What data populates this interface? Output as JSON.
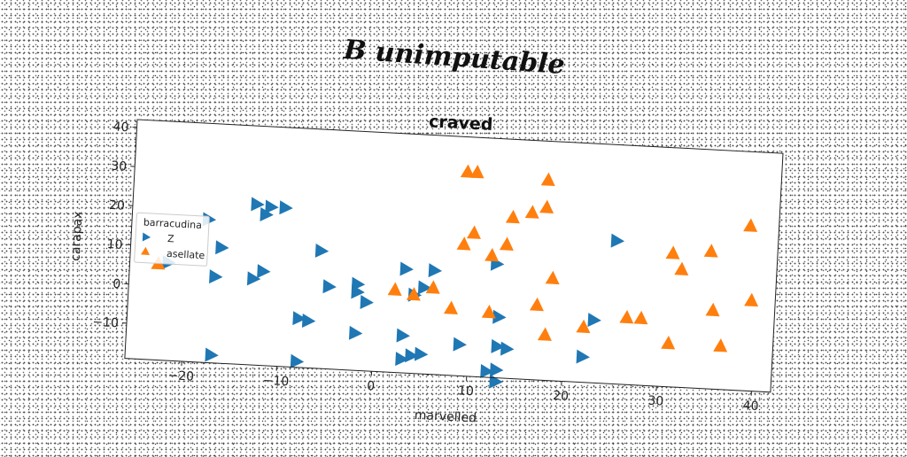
{
  "suptitle": "B unimputable",
  "chart_data": {
    "type": "scatter",
    "title": "craved",
    "xlabel": "marvelled",
    "ylabel": "carapax",
    "xlim": [
      -26,
      42
    ],
    "ylim": [
      -19,
      42
    ],
    "xticks": [
      -20,
      -10,
      0,
      10,
      20,
      30,
      40
    ],
    "yticks": [
      -10,
      0,
      10,
      20,
      30,
      40
    ],
    "grid": false,
    "legend": {
      "title": "barracudina",
      "placement": "left"
    },
    "series": [
      {
        "name": "Z",
        "marker": "triangle-right",
        "color": "#1f77b4",
        "points": [
          [
            -13,
            22
          ],
          [
            -11.5,
            21.5
          ],
          [
            -10,
            21.5
          ],
          [
            -12,
            19.5
          ],
          [
            -18,
            17.5
          ],
          [
            -16.5,
            10.5
          ],
          [
            -22,
            6
          ],
          [
            -17,
            3
          ],
          [
            -13,
            3
          ],
          [
            -12,
            5
          ],
          [
            -6,
            11
          ],
          [
            -5,
            2
          ],
          [
            -2,
            3
          ],
          [
            -2,
            1
          ],
          [
            -1,
            -1.5
          ],
          [
            -2,
            -9.5
          ],
          [
            -8,
            -6.5
          ],
          [
            -7,
            -7
          ],
          [
            -8,
            -17.5
          ],
          [
            -17,
            -17
          ],
          [
            3,
            7.5
          ],
          [
            6,
            7.5
          ],
          [
            5,
            3
          ],
          [
            4,
            1
          ],
          [
            3,
            -9.5
          ],
          [
            3,
            -15.5
          ],
          [
            4,
            -14.5
          ],
          [
            5,
            -14
          ],
          [
            9,
            -11
          ],
          [
            12,
            -17.5
          ],
          [
            13,
            -17
          ],
          [
            13,
            -20
          ],
          [
            13,
            -11
          ],
          [
            14,
            -11.5
          ],
          [
            13,
            -3.5
          ],
          [
            12.5,
            10
          ],
          [
            23,
            -3
          ],
          [
            22,
            -12.5
          ],
          [
            25,
            17.5
          ]
        ]
      },
      {
        "name": "asellate",
        "marker": "triangle-up",
        "color": "#ff7f0e",
        "points": [
          [
            -23,
            5.5
          ],
          [
            2,
            2
          ],
          [
            4,
            1
          ],
          [
            6,
            3
          ],
          [
            8,
            -2
          ],
          [
            9,
            14.5
          ],
          [
            10,
            17.5
          ],
          [
            9,
            33
          ],
          [
            10,
            33
          ],
          [
            12,
            12
          ],
          [
            13.5,
            15
          ],
          [
            14,
            22
          ],
          [
            16,
            23.5
          ],
          [
            17.5,
            32
          ],
          [
            17.5,
            25
          ],
          [
            18.5,
            7
          ],
          [
            17,
            0
          ],
          [
            18,
            -7.5
          ],
          [
            12,
            -2.5
          ],
          [
            22,
            -5
          ],
          [
            26.5,
            -2
          ],
          [
            28,
            -2
          ],
          [
            31,
            15
          ],
          [
            32,
            11
          ],
          [
            31,
            -8
          ],
          [
            35,
            16
          ],
          [
            35.5,
            1
          ],
          [
            36.5,
            -8
          ],
          [
            39,
            23
          ],
          [
            39.5,
            4
          ]
        ]
      }
    ]
  }
}
